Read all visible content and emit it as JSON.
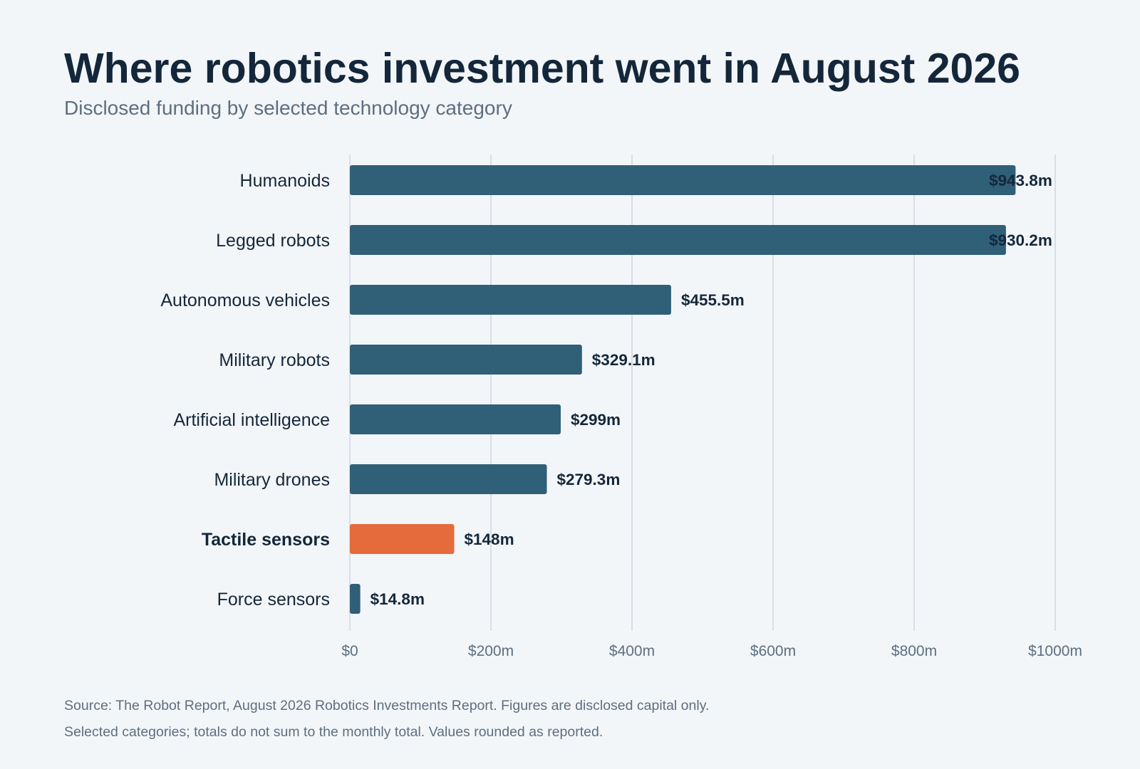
{
  "title": "Where robotics investment went in August 2026",
  "subtitle": "Disclosed funding by selected technology category",
  "footnotes": [
    "Source: The Robot Report, August 2026 Robotics Investments Report. Figures are disclosed capital only.",
    "Selected categories; totals do not sum to the monthly total. Values rounded as reported."
  ],
  "colors": {
    "bar": "#305f78",
    "highlight": "#e56b3d",
    "grid": "#c9d2da",
    "label": "#14273a",
    "tick": "#5c6f80"
  },
  "chart_data": {
    "type": "bar",
    "orientation": "horizontal",
    "categories": [
      "Humanoids",
      "Legged robots",
      "Autonomous vehicles",
      "Military robots",
      "Artificial intelligence",
      "Military drones",
      "Tactile sensors",
      "Force sensors"
    ],
    "values": [
      943.8,
      930.2,
      455.5,
      329.1,
      299,
      279.3,
      148,
      14.8
    ],
    "value_labels": [
      "$943.8m",
      "$930.2m",
      "$455.5m",
      "$329.1m",
      "$299m",
      "$279.3m",
      "$148m",
      "$14.8m"
    ],
    "highlight": "Tactile sensors",
    "xlim": [
      0,
      1000
    ],
    "xticks": [
      0,
      200,
      400,
      600,
      800,
      1000
    ],
    "xtick_labels": [
      "$0",
      "$200m",
      "$400m",
      "$600m",
      "$800m",
      "$1000m"
    ],
    "grid": true,
    "legend": "none"
  }
}
